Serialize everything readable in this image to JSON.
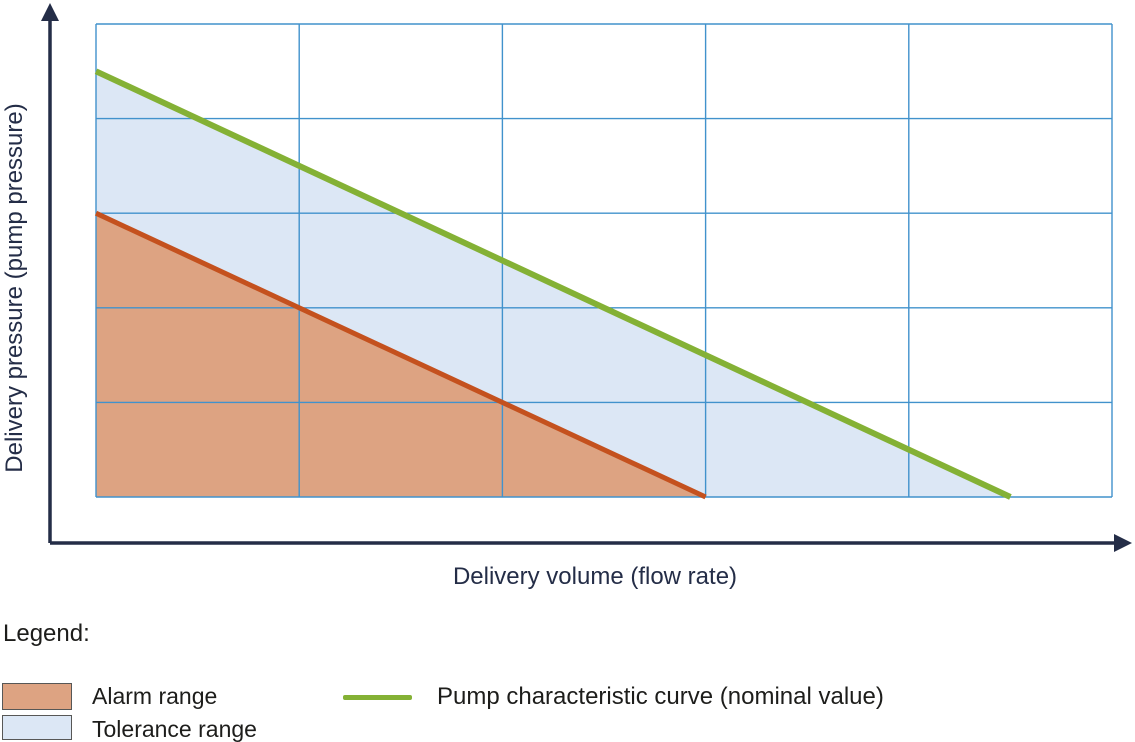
{
  "chart": {
    "y_axis_label": "Delivery pressure (pump pressure)",
    "x_axis_label": "Delivery volume (flow rate)"
  },
  "legend": {
    "title": "Legend:",
    "items": [
      {
        "label": "Alarm range",
        "swatch": "alarm"
      },
      {
        "label": "Tolerance range",
        "swatch": "tolerance"
      },
      {
        "label": "Pump characteristic curve (nominal value)",
        "swatch": "line"
      }
    ]
  },
  "colors": {
    "axis_navy": "#242d47",
    "grid_blue": "#4192cc",
    "curve_green": "#84b135",
    "alarm_line_orange": "#c4511e",
    "alarm_fill": "#dda382",
    "tolerance_fill": "#dce7f5",
    "text_black": "#1d1d1b",
    "swatch_border": "#575756"
  },
  "chart_data": {
    "type": "area",
    "title": "",
    "xlabel": "Delivery volume (flow rate)",
    "ylabel": "Delivery pressure (pump pressure)",
    "x_range": [
      0,
      5
    ],
    "y_range": [
      0,
      5
    ],
    "grid": true,
    "grid_cols": 5,
    "grid_rows": 5,
    "axis_ticks": "none (schematic, unlabeled axes)",
    "legend_position": "below chart",
    "series": [
      {
        "name": "Pump characteristic curve (nominal value)",
        "type": "line",
        "color": "#84b135",
        "points": [
          [
            0,
            4.5
          ],
          [
            4.5,
            0
          ]
        ]
      },
      {
        "name": "Alarm limit (lower boundary of tolerance range)",
        "type": "line",
        "color": "#c4511e",
        "points": [
          [
            0,
            3
          ],
          [
            3,
            0
          ]
        ]
      }
    ],
    "regions": [
      {
        "name": "Tolerance range",
        "color": "#dce7f5",
        "points": [
          [
            0,
            4.5
          ],
          [
            4.5,
            0
          ],
          [
            3,
            0
          ],
          [
            0,
            3
          ]
        ]
      },
      {
        "name": "Alarm range",
        "color": "#dda382",
        "points": [
          [
            0,
            3
          ],
          [
            3,
            0
          ],
          [
            0,
            0
          ]
        ]
      }
    ]
  }
}
